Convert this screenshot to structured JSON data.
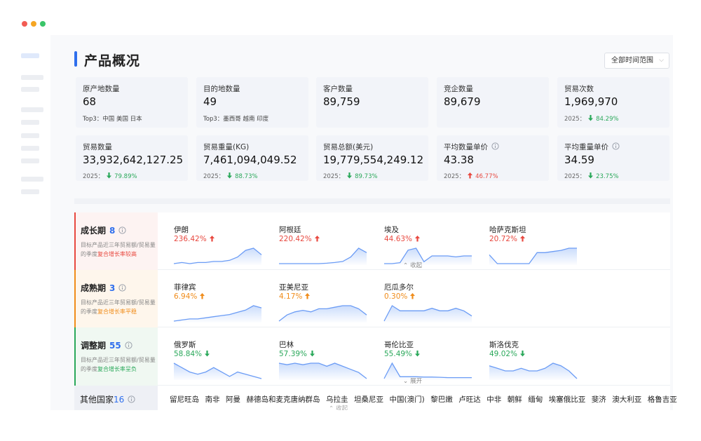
{
  "header": {
    "title": "产品概况",
    "time_range": "全部时间范围"
  },
  "stats": [
    {
      "label": "原产地数量",
      "value": "68",
      "note": "Top3：中国 美国 日本"
    },
    {
      "label": "目的地数量",
      "value": "49",
      "note": "Top3：墨西哥 越南 印度"
    },
    {
      "label": "客户数量",
      "value": "89,759"
    },
    {
      "label": "竞企数量",
      "value": "89,679"
    },
    {
      "label": "贸易次数",
      "value": "1,969,970",
      "year": "2025：",
      "change": "84.29%",
      "direction": "down"
    },
    {
      "label": "贸易数量",
      "value": "33,932,642,127.25",
      "year": "2025：",
      "change": "79.89%",
      "direction": "down"
    },
    {
      "label": "贸易重量(KG)",
      "value": "7,461,094,049.52",
      "year": "2025：",
      "change": "88.73%",
      "direction": "down"
    },
    {
      "label": "贸易总额(美元)",
      "value": "19,779,554,249.12",
      "year": "2025：",
      "change": "89.73%",
      "direction": "down"
    },
    {
      "label": "平均数量单价",
      "value": "43.38",
      "info": true,
      "year": "2025：",
      "change": "46.77%",
      "direction": "up"
    },
    {
      "label": "平均重量单价",
      "value": "34.59",
      "info": true,
      "year": "2025：",
      "change": "23.75%",
      "direction": "down"
    }
  ],
  "stages": [
    {
      "name": "成长期",
      "count": "8",
      "desc": "目标产品近三年贸易额/贸易量的季度",
      "highlight": "复合增长率较高",
      "color": "#e8483f",
      "tint": "#fdf3f2",
      "toggle": "收起",
      "countries": [
        {
          "name": "伊朗",
          "change": "236.42%",
          "direction": "up",
          "trend": [
            2,
            2.5,
            2,
            2.5,
            2.5,
            3,
            3,
            3.5,
            5,
            8,
            9,
            6
          ]
        },
        {
          "name": "阿根廷",
          "change": "220.42%",
          "direction": "up",
          "trend": [
            2,
            2,
            2,
            2,
            2,
            2,
            2.2,
            2.5,
            3,
            5,
            9,
            7
          ]
        },
        {
          "name": "埃及",
          "change": "44.63%",
          "direction": "up",
          "trend": [
            1,
            1,
            1.5,
            8,
            9,
            2,
            5,
            5,
            5,
            4.5,
            5,
            5
          ]
        },
        {
          "name": "哈萨克斯坦",
          "change": "20.72%",
          "direction": "up",
          "trend": [
            5,
            1,
            1,
            1,
            1,
            1,
            6,
            6,
            6.5,
            7,
            8,
            8
          ]
        }
      ]
    },
    {
      "name": "成熟期",
      "count": "3",
      "desc": "目标产品近三年贸易额/贸易量的季度",
      "highlight": "复合增长率平稳",
      "color": "#f08c1a",
      "tint": "#fef6ec",
      "countries": [
        {
          "name": "菲律宾",
          "change": "6.94%",
          "direction": "up",
          "trend": [
            1,
            1.5,
            2,
            2,
            2.5,
            3,
            3.5,
            4,
            5,
            6,
            8,
            7
          ]
        },
        {
          "name": "亚美尼亚",
          "change": "4.17%",
          "direction": "up",
          "trend": [
            1,
            3,
            4,
            4.5,
            4,
            5,
            5,
            5.5,
            6,
            6,
            5,
            3
          ]
        },
        {
          "name": "厄瓜多尔",
          "change": "0.30%",
          "direction": "up",
          "trend": [
            3,
            6,
            5,
            5,
            5,
            5,
            5.5,
            5,
            5,
            5.5,
            5,
            4
          ]
        }
      ]
    },
    {
      "name": "调整期",
      "count": "55",
      "desc": "目标产品近三年贸易额/贸易量的季度",
      "highlight": "复合增长率呈负",
      "color": "#2aa85a",
      "tint": "#f0f8f2",
      "toggle": "展开",
      "countries": [
        {
          "name": "俄罗斯",
          "change": "58.84%",
          "direction": "down",
          "trend": [
            5,
            4,
            3,
            2.5,
            3,
            4,
            3,
            2,
            3,
            2.5,
            2,
            1.5
          ]
        },
        {
          "name": "巴林",
          "change": "57.39%",
          "direction": "down",
          "trend": [
            6,
            5.5,
            6,
            5.5,
            6,
            6,
            5,
            6,
            5,
            4,
            3,
            1
          ]
        },
        {
          "name": "哥伦比亚",
          "change": "55.49%",
          "direction": "down",
          "trend": [
            1,
            9,
            2,
            2,
            2,
            1.8,
            1.8,
            1.7,
            1.5,
            1.5,
            1.5,
            1.5
          ]
        },
        {
          "name": "斯洛伐克",
          "change": "49.02%",
          "direction": "down",
          "trend": [
            6,
            5,
            4,
            4,
            5,
            4,
            4,
            5,
            7,
            6,
            4,
            1
          ]
        }
      ]
    }
  ],
  "others": {
    "name": "其他国家",
    "count": "16",
    "toggle": "收起",
    "countries": [
      "留尼旺岛",
      "南非",
      "阿曼",
      "赫德岛和麦克唐纳群岛",
      "乌拉圭",
      "坦桑尼亚",
      "中国(澳门)",
      "黎巴嫩",
      "卢旺达",
      "中非",
      "朝鲜",
      "缅甸",
      "埃塞俄比亚",
      "斐济",
      "澳大利亚",
      "格鲁吉亚"
    ]
  }
}
